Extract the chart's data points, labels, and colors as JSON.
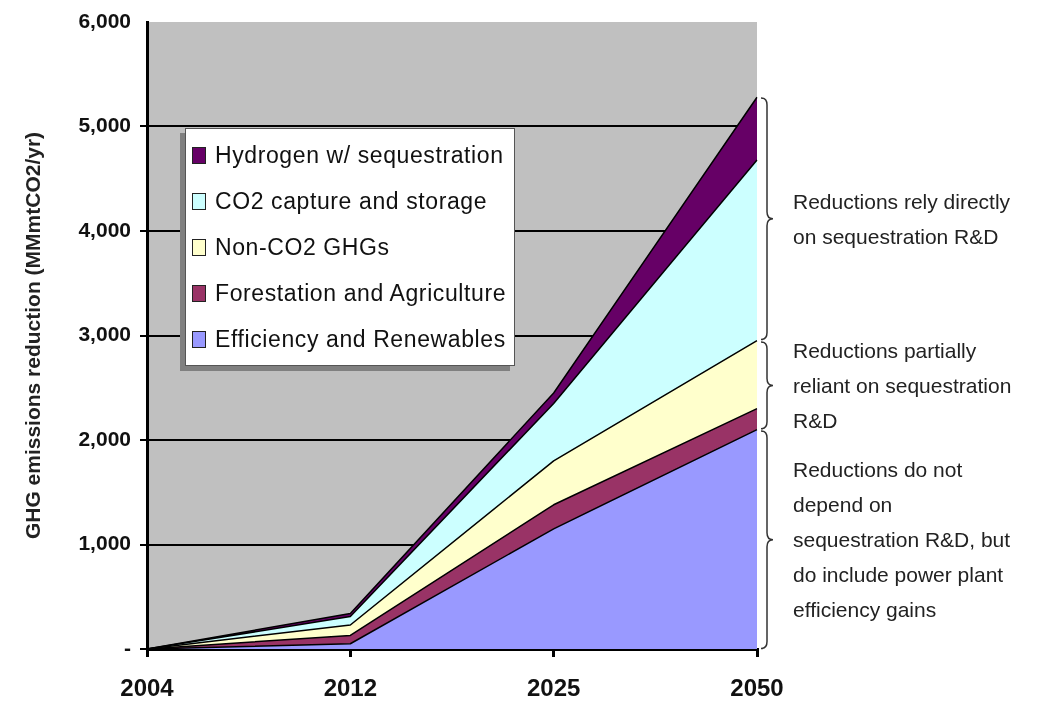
{
  "chart_data": {
    "type": "area",
    "categories": [
      "2004",
      "2012",
      "2025",
      "2050"
    ],
    "ylabel": "GHG emissions reduction (MMmtCO2/yr)",
    "ylim": [
      0,
      6000
    ],
    "yticks": [
      {
        "value": 0,
        "label": "-"
      },
      {
        "value": 1000,
        "label": "1,000"
      },
      {
        "value": 2000,
        "label": "2,000"
      },
      {
        "value": 3000,
        "label": "3,000"
      },
      {
        "value": 4000,
        "label": "4,000"
      },
      {
        "value": 5000,
        "label": "5,000"
      },
      {
        "value": 6000,
        "label": "6,000"
      }
    ],
    "stacked": true,
    "grid": "y",
    "legend": "top left",
    "series": [
      {
        "name": "Efficiency and Renewables",
        "color": "#9999ff",
        "values": [
          0,
          50,
          1150,
          2100
        ]
      },
      {
        "name": "Forestation and Agriculture",
        "color": "#993366",
        "values": [
          0,
          80,
          230,
          200
        ]
      },
      {
        "name": "Non-CO2 GHGs",
        "color": "#ffffcc",
        "values": [
          0,
          100,
          420,
          650
        ]
      },
      {
        "name": "CO2 capture and storage",
        "color": "#ccffff",
        "values": [
          0,
          80,
          550,
          1730
        ]
      },
      {
        "name": "Hydrogen w/ sequestration",
        "color": "#660066",
        "values": [
          0,
          30,
          100,
          600
        ]
      }
    ],
    "annotations": [
      {
        "text": "Reductions rely directly\non sequestration R&D",
        "x": "2050",
        "y": 4115
      },
      {
        "text": "Reductions partially\nreliant on sequestration\nR&D",
        "x": "2050",
        "y": 2525
      },
      {
        "text": "Reductions do not\ndepend on\nsequestration R&D, but\ndo include power plant\nefficiency gains",
        "x": "2050",
        "y": 1050
      }
    ]
  }
}
